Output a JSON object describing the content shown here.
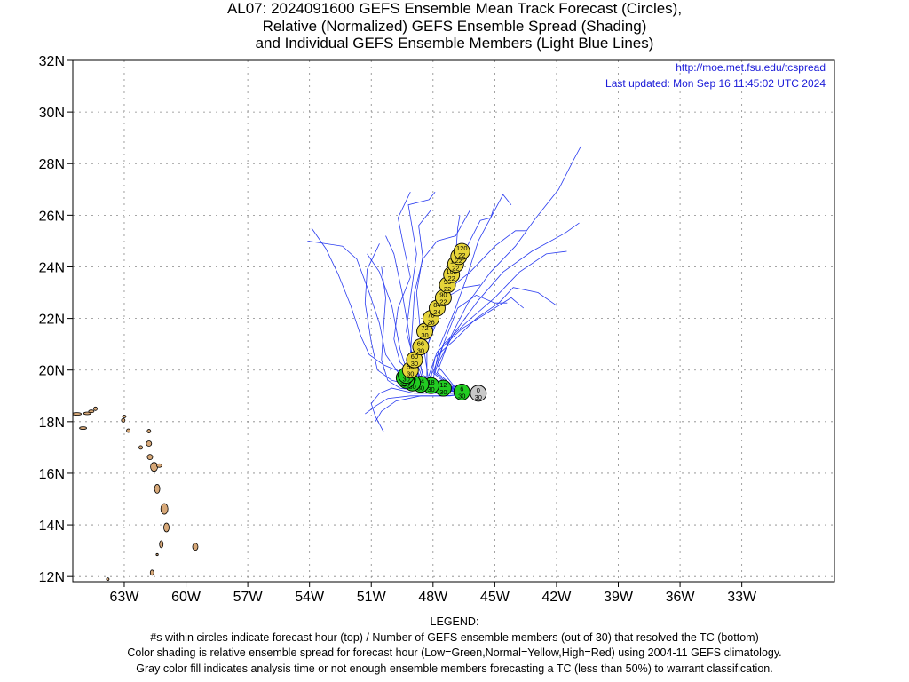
{
  "title": {
    "line1": "AL07: 2024091600 GEFS Ensemble Mean Track Forecast (Circles),",
    "line2": "Relative (Normalized) GEFS Ensemble Spread (Shading)",
    "line3": "and Individual GEFS Ensemble Members (Light Blue Lines)"
  },
  "header_right": {
    "url": "http://moe.met.fsu.edu/tcspread",
    "updated": "Last updated: Mon Sep 16 11:45:02 UTC 2024"
  },
  "axes": {
    "lon_range": [
      -65.5,
      -28.5
    ],
    "lat_range": [
      11.8,
      32.0
    ],
    "lat_ticks": [
      {
        "value": 32,
        "label": "32N"
      },
      {
        "value": 30,
        "label": "30N"
      },
      {
        "value": 28,
        "label": "28N"
      },
      {
        "value": 26,
        "label": "26N"
      },
      {
        "value": 24,
        "label": "24N"
      },
      {
        "value": 22,
        "label": "22N"
      },
      {
        "value": 20,
        "label": "20N"
      },
      {
        "value": 18,
        "label": "18N"
      },
      {
        "value": 16,
        "label": "16N"
      },
      {
        "value": 14,
        "label": "14N"
      },
      {
        "value": 12,
        "label": "12N"
      }
    ],
    "lon_ticks": [
      {
        "value": -63,
        "label": "63W"
      },
      {
        "value": -60,
        "label": "60W"
      },
      {
        "value": -57,
        "label": "57W"
      },
      {
        "value": -54,
        "label": "54W"
      },
      {
        "value": -51,
        "label": "51W"
      },
      {
        "value": -48,
        "label": "48W"
      },
      {
        "value": -45,
        "label": "45W"
      },
      {
        "value": -42,
        "label": "42W"
      },
      {
        "value": -39,
        "label": "39W"
      },
      {
        "value": -36,
        "label": "36W"
      },
      {
        "value": -33,
        "label": "33W"
      }
    ]
  },
  "colors": {
    "analysis": "#c8c8c8",
    "low_spread": "#22cc22",
    "normal_spread": "#e6d43a",
    "member_line": "#2a3cf0",
    "island_fill": "#d7a878",
    "header_text": "#1a1ad8"
  },
  "mean_track": [
    {
      "hour": "0",
      "members": "30",
      "lon": -45.8,
      "lat": 19.1,
      "shade": "analysis"
    },
    {
      "hour": "6",
      "members": "30",
      "lon": -46.6,
      "lat": 19.15,
      "shade": "low_spread"
    },
    {
      "hour": "12",
      "members": "30",
      "lon": -47.5,
      "lat": 19.3,
      "shade": "low_spread"
    },
    {
      "hour": "18",
      "members": "30",
      "lon": -48.1,
      "lat": 19.4,
      "shade": "low_spread"
    },
    {
      "hour": "24",
      "members": "30",
      "lon": -48.6,
      "lat": 19.45,
      "shade": "low_spread"
    },
    {
      "hour": "30",
      "members": "30",
      "lon": -49.0,
      "lat": 19.5,
      "shade": "low_spread"
    },
    {
      "hour": "36",
      "members": "30",
      "lon": -49.3,
      "lat": 19.6,
      "shade": "low_spread"
    },
    {
      "hour": "42",
      "members": "30",
      "lon": -49.4,
      "lat": 19.7,
      "shade": "low_spread"
    },
    {
      "hour": "48",
      "members": "30",
      "lon": -49.3,
      "lat": 19.8,
      "shade": "low_spread"
    },
    {
      "hour": "54",
      "members": "30",
      "lon": -49.1,
      "lat": 20.0,
      "shade": "normal_spread"
    },
    {
      "hour": "60",
      "members": "30",
      "lon": -48.9,
      "lat": 20.4,
      "shade": "normal_spread"
    },
    {
      "hour": "66",
      "members": "30",
      "lon": -48.6,
      "lat": 20.9,
      "shade": "normal_spread"
    },
    {
      "hour": "72",
      "members": "30",
      "lon": -48.4,
      "lat": 21.5,
      "shade": "normal_spread"
    },
    {
      "hour": "78",
      "members": "26",
      "lon": -48.1,
      "lat": 22.0,
      "shade": "normal_spread"
    },
    {
      "hour": "84",
      "members": "24",
      "lon": -47.8,
      "lat": 22.4,
      "shade": "normal_spread"
    },
    {
      "hour": "90",
      "members": "22",
      "lon": -47.5,
      "lat": 22.8,
      "shade": "normal_spread"
    },
    {
      "hour": "96",
      "members": "22",
      "lon": -47.3,
      "lat": 23.3,
      "shade": "normal_spread"
    },
    {
      "hour": "102",
      "members": "22",
      "lon": -47.1,
      "lat": 23.7,
      "shade": "normal_spread"
    },
    {
      "hour": "108",
      "members": "22",
      "lon": -46.9,
      "lat": 24.1,
      "shade": "normal_spread"
    },
    {
      "hour": "114",
      "members": "22",
      "lon": -46.75,
      "lat": 24.4,
      "shade": "normal_spread"
    },
    {
      "hour": "120",
      "members": "22",
      "lon": -46.6,
      "lat": 24.6,
      "shade": "normal_spread"
    }
  ],
  "legend": {
    "heading": "LEGEND:",
    "line1": "#s within circles indicate forecast hour (top) / Number of GEFS ensemble members (out of 30) that resolved the TC (bottom)",
    "line2": "Color shading is relative ensemble spread for forecast hour (Low=Green,Normal=Yellow,High=Red) using 2004-11 GEFS climatology.",
    "line3": "Gray color fill indicates analysis time or not enough ensemble members forecasting a TC (less than 50%) to warrant classification."
  }
}
